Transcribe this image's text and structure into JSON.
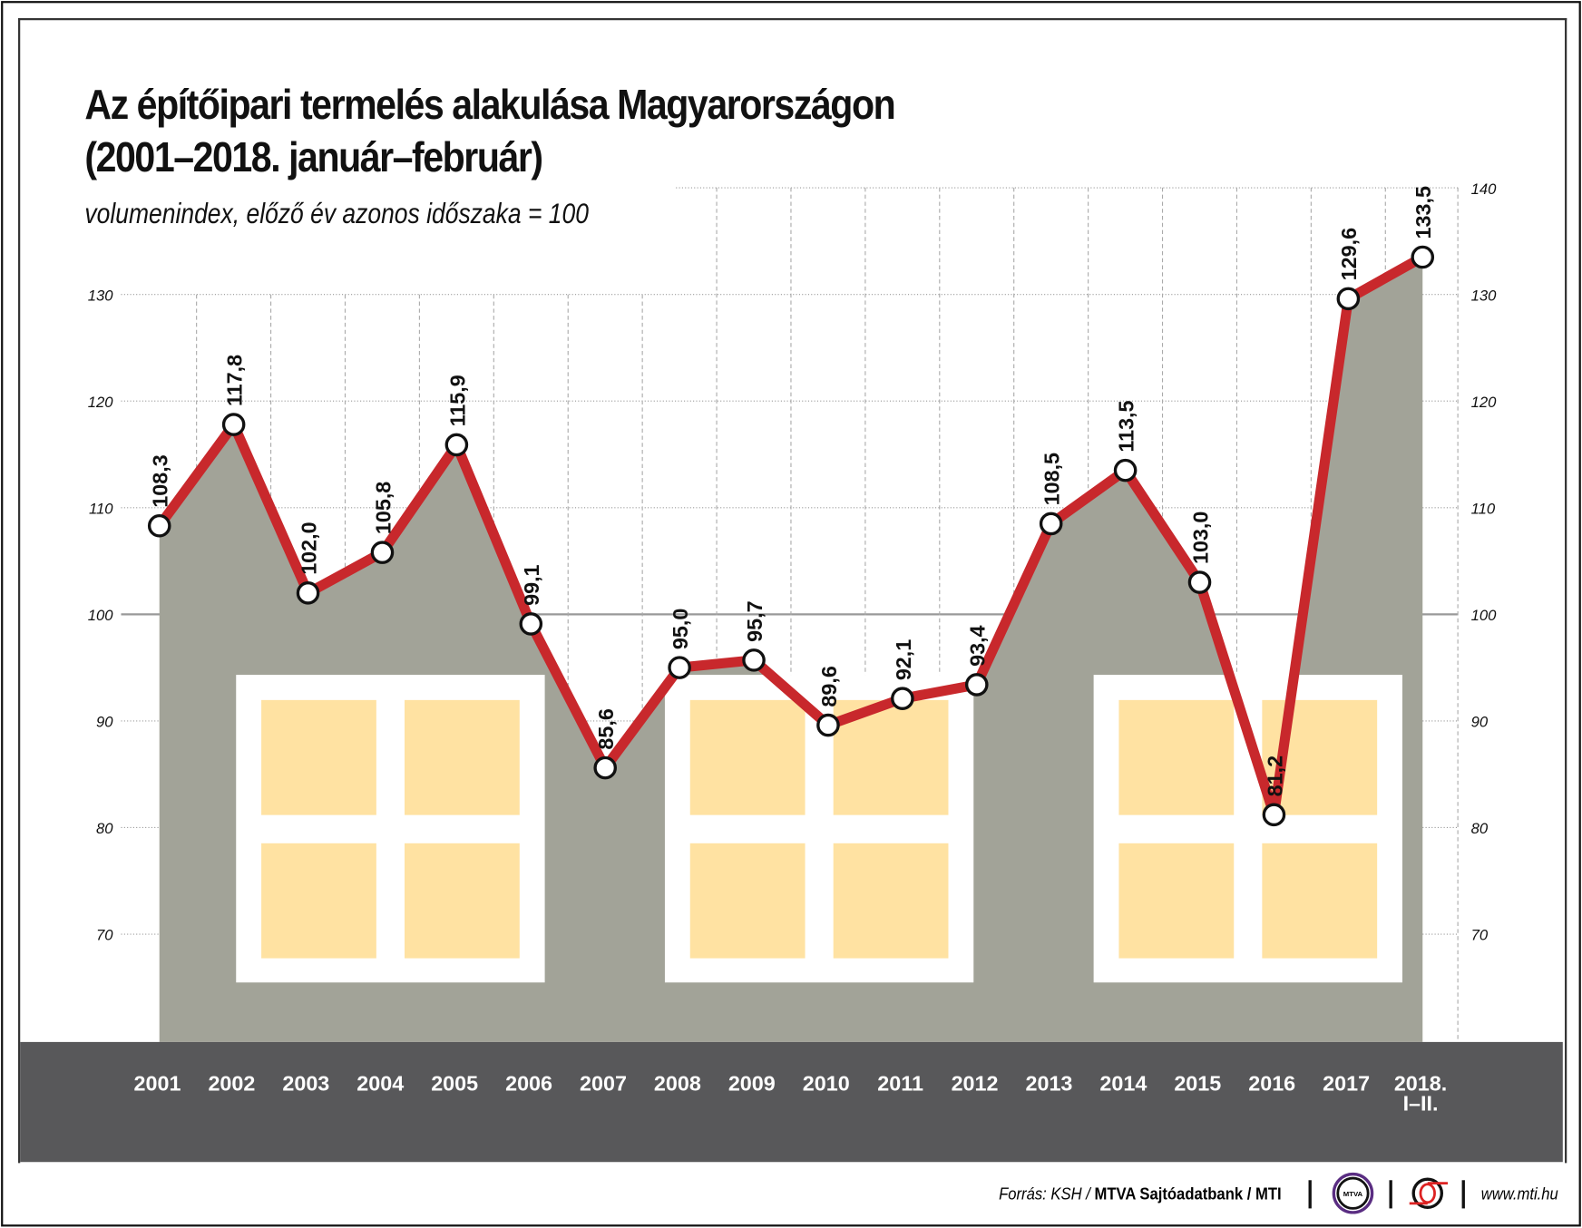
{
  "title_line1": "Az építőipari termelés alakulása Magyarországon",
  "title_line2": "(2001–2018. január–február)",
  "subtitle": "volumenindex, előző év azonos időszaka = 100",
  "chart_data": {
    "type": "area",
    "categories": [
      "2001",
      "2002",
      "2003",
      "2004",
      "2005",
      "2006",
      "2007",
      "2008",
      "2009",
      "2010",
      "2011",
      "2012",
      "2013",
      "2014",
      "2015",
      "2016",
      "2017",
      "2018. I–II."
    ],
    "category_lines": [
      [
        "2001"
      ],
      [
        "2002"
      ],
      [
        "2003"
      ],
      [
        "2004"
      ],
      [
        "2005"
      ],
      [
        "2006"
      ],
      [
        "2007"
      ],
      [
        "2008"
      ],
      [
        "2009"
      ],
      [
        "2010"
      ],
      [
        "2011"
      ],
      [
        "2012"
      ],
      [
        "2013"
      ],
      [
        "2014"
      ],
      [
        "2015"
      ],
      [
        "2016"
      ],
      [
        "2017"
      ],
      [
        "2018.",
        "I–II."
      ]
    ],
    "values": [
      108.3,
      117.8,
      102.0,
      105.8,
      115.9,
      99.1,
      85.6,
      95.0,
      95.7,
      89.6,
      92.1,
      93.4,
      108.5,
      113.5,
      103.0,
      81.2,
      129.6,
      133.5
    ],
    "value_labels": [
      "108,3",
      "117,8",
      "102,0",
      "105,8",
      "115,9",
      "99,1",
      "85,6",
      "95,0",
      "95,7",
      "89,6",
      "92,1",
      "93,4",
      "108,5",
      "113,5",
      "103,0",
      "81,2",
      "129,6",
      "133,5"
    ],
    "y_ticks_left": [
      70,
      80,
      90,
      100,
      110,
      120,
      130
    ],
    "y_ticks_right": [
      70,
      80,
      90,
      100,
      110,
      120,
      130,
      140
    ],
    "ylim": [
      60,
      140
    ],
    "reference_line": 100,
    "grid": true,
    "colors": {
      "line": "#c8282c",
      "area": "#a2a398",
      "band": "#58585a",
      "window": "#ffe2a2"
    }
  },
  "footer": {
    "source_prefix": "Forrás: KSH / ",
    "source_bold": "MTVA Sajtóadatbank / MTI",
    "logo1": "MTVA",
    "url": "www.mti.hu"
  }
}
